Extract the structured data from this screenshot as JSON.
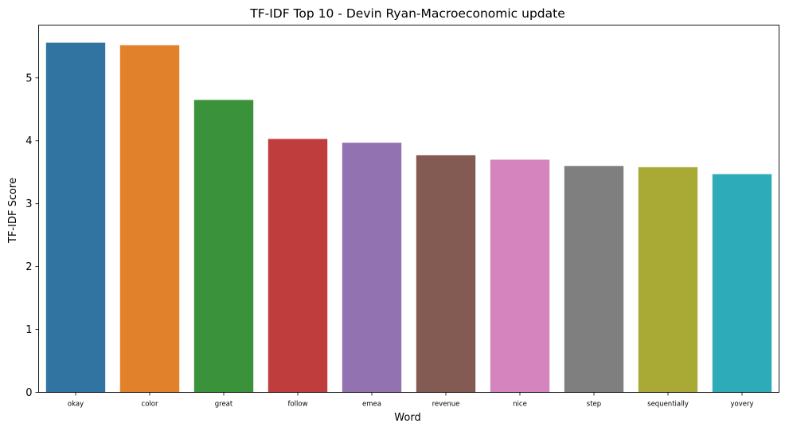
{
  "chart_data": {
    "type": "bar",
    "title": "TF-IDF Top 10 - Devin Ryan-Macroeconomic update",
    "xlabel": "Word",
    "ylabel": "TF-IDF Score",
    "categories": [
      "okay",
      "color",
      "great",
      "follow",
      "emea",
      "revenue",
      "nice",
      "step",
      "sequentially",
      "yovery"
    ],
    "values": [
      5.56,
      5.52,
      4.65,
      4.03,
      3.97,
      3.77,
      3.7,
      3.6,
      3.58,
      3.47
    ],
    "colors": [
      "#3274a1",
      "#e1812c",
      "#3a923a",
      "#c03d3e",
      "#9372b2",
      "#845b53",
      "#d684bd",
      "#7f7f7f",
      "#a9aa35",
      "#2eabb8"
    ],
    "ylim": [
      0,
      5.84
    ],
    "yticks": [
      0,
      1,
      2,
      3,
      4,
      5
    ],
    "ytick_labels": [
      "0",
      "1",
      "2",
      "3",
      "4",
      "5"
    ],
    "grid": false,
    "legend": "none"
  }
}
